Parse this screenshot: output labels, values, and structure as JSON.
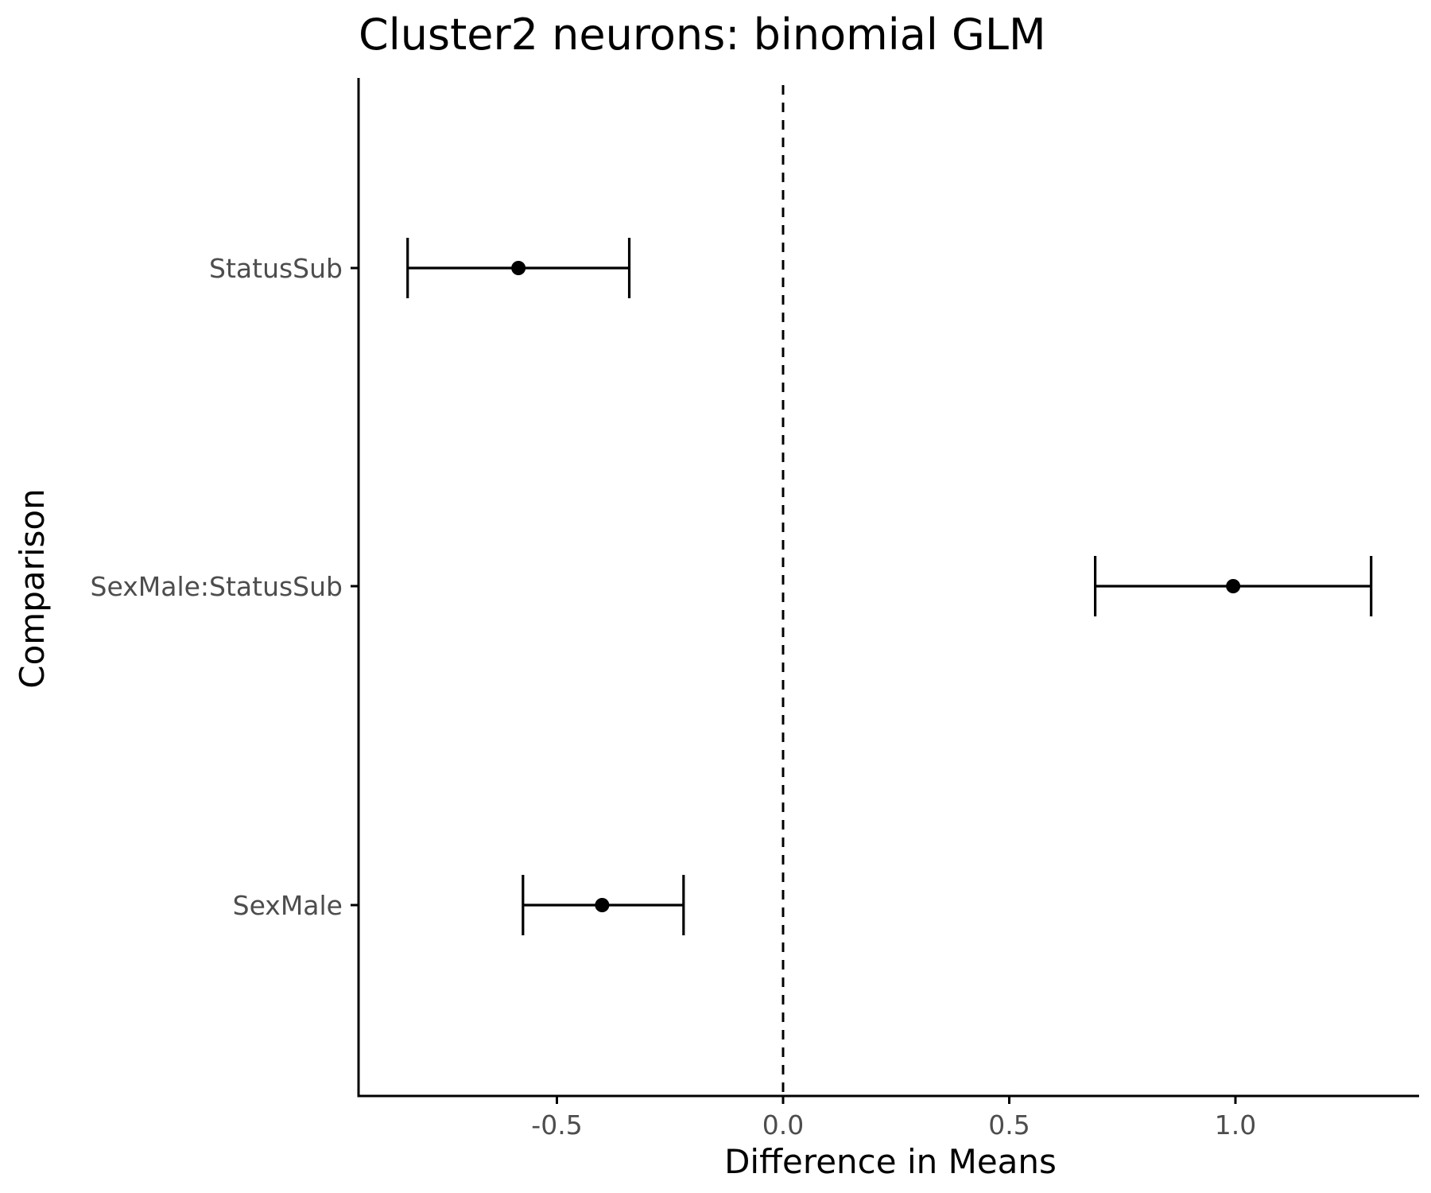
{
  "chart_data": {
    "type": "scatter",
    "subtype": "coefficient-plot-with-error-bars",
    "title": "Cluster2 neurons: binomial GLM",
    "xlabel": "Difference in Means",
    "ylabel": "Comparison",
    "xlim": [
      -0.94,
      1.4
    ],
    "x_ticks": [
      -0.5,
      0.0,
      0.5,
      1.0
    ],
    "x_tick_labels": [
      "-0.5",
      "0.0",
      "0.5",
      "1.0"
    ],
    "categories": [
      "StatusSub",
      "SexMale:StatusSub",
      "SexMale"
    ],
    "points": [
      {
        "label": "StatusSub",
        "estimate": -0.585,
        "lower": -0.83,
        "upper": -0.34
      },
      {
        "label": "SexMale:StatusSub",
        "estimate": 0.995,
        "lower": 0.69,
        "upper": 1.3
      },
      {
        "label": "SexMale",
        "estimate": -0.4,
        "lower": -0.575,
        "upper": -0.22
      }
    ],
    "reference_line": {
      "x": 0.0,
      "style": "dashed"
    },
    "grid": false,
    "legend": "none",
    "colors": {
      "points": "#000000",
      "axes": "#000000",
      "tick_labels": "#4d4d4d"
    }
  }
}
